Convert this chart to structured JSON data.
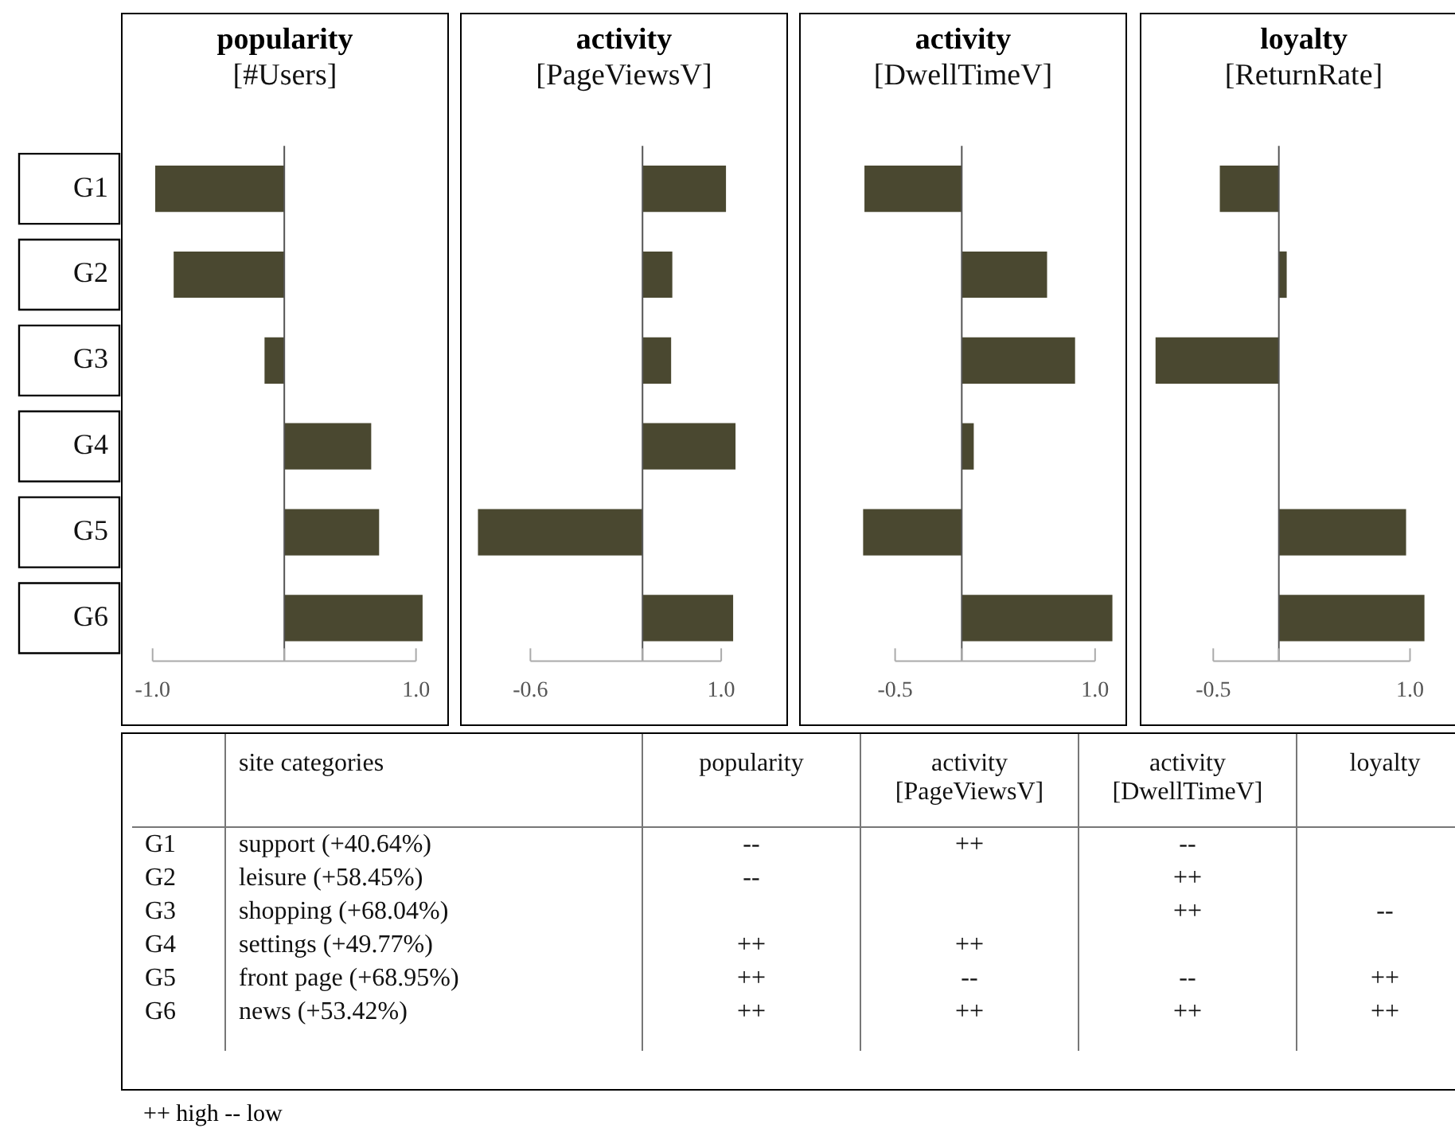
{
  "chart_data": [
    {
      "type": "bar",
      "orientation": "horizontal",
      "title": "popularity",
      "subtitle": "[#Users]",
      "categories": [
        "G1",
        "G2",
        "G3",
        "G4",
        "G5",
        "G6"
      ],
      "values": [
        -0.98,
        -0.84,
        -0.15,
        0.66,
        0.72,
        1.05
      ],
      "color": "#4a4830",
      "xlim": [
        -1.24,
        1.25
      ],
      "xticks": [
        {
          "value": -1,
          "label": "-1.0"
        },
        {
          "value": 0,
          "label": null
        },
        {
          "value": 1,
          "label": "1.0"
        }
      ],
      "ref_lines": [
        {
          "axis": "x",
          "value": 0
        }
      ],
      "grid": false
    },
    {
      "type": "bar",
      "orientation": "horizontal",
      "title": "activity",
      "subtitle": "[PageViewsV]",
      "categories": [
        null,
        null,
        null,
        null,
        null,
        null
      ],
      "base": [
        0.34,
        0.34,
        0.34,
        0.34,
        0.34,
        0.34
      ],
      "values": [
        0.7,
        0.25,
        0.24,
        0.78,
        -1.38,
        0.76
      ],
      "color": "#4a4830",
      "xlim": [
        -1.19,
        1.56
      ],
      "xticks": [
        {
          "value": -0.6,
          "label": "-0.6"
        },
        {
          "value": 0.34,
          "label": null
        },
        {
          "value": 1,
          "label": "1.0"
        }
      ],
      "ref_lines": [
        {
          "axis": "x",
          "value": 0.34
        }
      ],
      "grid": false,
      "tick_labels": "x"
    },
    {
      "type": "bar",
      "orientation": "horizontal",
      "title": "activity",
      "subtitle": "[DwellTimeV]",
      "categories": [
        null,
        null,
        null,
        null,
        null,
        null
      ],
      "values": [
        -0.73,
        0.64,
        0.85,
        0.09,
        -0.74,
        1.13
      ],
      "color": "#4a4830",
      "xlim": [
        -1.22,
        1.24
      ],
      "xticks": [
        {
          "value": -0.5,
          "label": "-0.5"
        },
        {
          "value": 0,
          "label": null
        },
        {
          "value": 1,
          "label": "1.0"
        }
      ],
      "ref_lines": [
        {
          "axis": "x",
          "value": 0
        }
      ],
      "grid": false,
      "tick_labels": "x"
    },
    {
      "type": "bar",
      "orientation": "horizontal",
      "title": "loyalty",
      "subtitle": "[ReturnRate]",
      "categories": [
        null,
        null,
        null,
        null,
        null,
        null
      ],
      "values": [
        -0.45,
        0.06,
        -0.94,
        0.0,
        0.97,
        1.11
      ],
      "color": "#4a4830",
      "xlim": [
        -1.06,
        1.44
      ],
      "xticks": [
        {
          "value": -0.5,
          "label": "-0.5"
        },
        {
          "value": 0,
          "label": null
        },
        {
          "value": 1,
          "label": "1.0"
        }
      ],
      "ref_lines": [
        {
          "axis": "x",
          "value": 0
        }
      ],
      "grid": false,
      "tick_labels": "x"
    },
    {
      "type": "other",
      "categories": [
        "popularity",
        "activity [PageViewsV]",
        "activity [DwellTimeV]",
        "loyalty"
      ],
      "y_categories": [
        "G1",
        "G2",
        "G3",
        "G4",
        "G5",
        "G6"
      ],
      "y2label": "site categories",
      "y2_categories": [
        "support (+40.64%)",
        "leisure (+58.45%)",
        "shopping (+68.04%)",
        "settings (+49.77%)",
        "front page (+68.95%)",
        "news (+53.42%)"
      ],
      "cell_labels": [
        [
          "--",
          "++",
          "--",
          null
        ],
        [
          "--",
          null,
          "++",
          null
        ],
        [
          null,
          null,
          "++",
          "--"
        ],
        [
          "++",
          "++",
          null,
          null
        ],
        [
          "++",
          "--",
          "--",
          "++"
        ],
        [
          "++",
          "++",
          "++",
          "++"
        ]
      ],
      "annotations": [
        "++ high -- low"
      ]
    }
  ]
}
